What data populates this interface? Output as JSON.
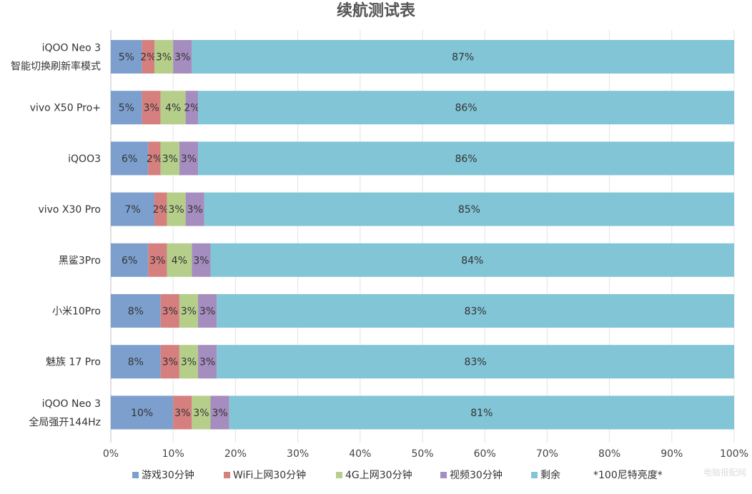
{
  "chart_data": {
    "type": "bar",
    "orientation": "horizontal",
    "stacked": true,
    "title": "续航测试表",
    "categories": [
      [
        "iQOO Neo 3",
        "智能切换刷新率模式"
      ],
      [
        "vivo X50 Pro+"
      ],
      [
        "iQOO3"
      ],
      [
        "vivo X30 Pro"
      ],
      [
        "黑鲨3Pro"
      ],
      [
        "小米10Pro"
      ],
      [
        "魅族 17 Pro"
      ],
      [
        "iQOO Neo 3",
        "全局强开144Hz"
      ]
    ],
    "series": [
      {
        "name": "游戏30分钟",
        "color": "#7d9fce",
        "values": [
          5,
          5,
          6,
          7,
          6,
          8,
          8,
          10
        ],
        "labels": [
          "5%",
          "5%",
          "6%",
          "7%",
          "6%",
          "8%",
          "8%",
          "10%"
        ]
      },
      {
        "name": "WiFi上网30分钟",
        "color": "#d67f7f",
        "values": [
          2,
          3,
          2,
          2,
          3,
          3,
          3,
          3
        ],
        "labels": [
          "2%",
          "3%",
          "2%",
          "2%",
          "3%",
          "3%",
          "3%",
          "3%"
        ]
      },
      {
        "name": "4G上网30分钟",
        "color": "#b5cf8b",
        "values": [
          3,
          4,
          3,
          3,
          4,
          3,
          3,
          3
        ],
        "labels": [
          "3%",
          "4%",
          "3%",
          "3%",
          "4%",
          "3%",
          "3%",
          "3%"
        ]
      },
      {
        "name": "视频30分钟",
        "color": "#a58dbf",
        "values": [
          3,
          2,
          3,
          3,
          3,
          3,
          3,
          3
        ],
        "labels": [
          "3%",
          "2%",
          "3%",
          "3%",
          "3%",
          "3%",
          "3%",
          "3%"
        ]
      },
      {
        "name": "剩余",
        "color": "#81c5d6",
        "values": [
          87,
          86,
          86,
          85,
          84,
          83,
          83,
          81
        ],
        "labels": [
          "87%",
          "86%",
          "86%",
          "85%",
          "84%",
          "83%",
          "83%",
          "81%"
        ]
      }
    ],
    "xlim": [
      0,
      100
    ],
    "xticks": [
      "0%",
      "10%",
      "20%",
      "30%",
      "40%",
      "50%",
      "60%",
      "70%",
      "80%",
      "90%",
      "100%"
    ],
    "grid": true,
    "legend_position": "bottom",
    "legend_note": "*100尼特亮度*",
    "watermark": "电脑报配网"
  }
}
